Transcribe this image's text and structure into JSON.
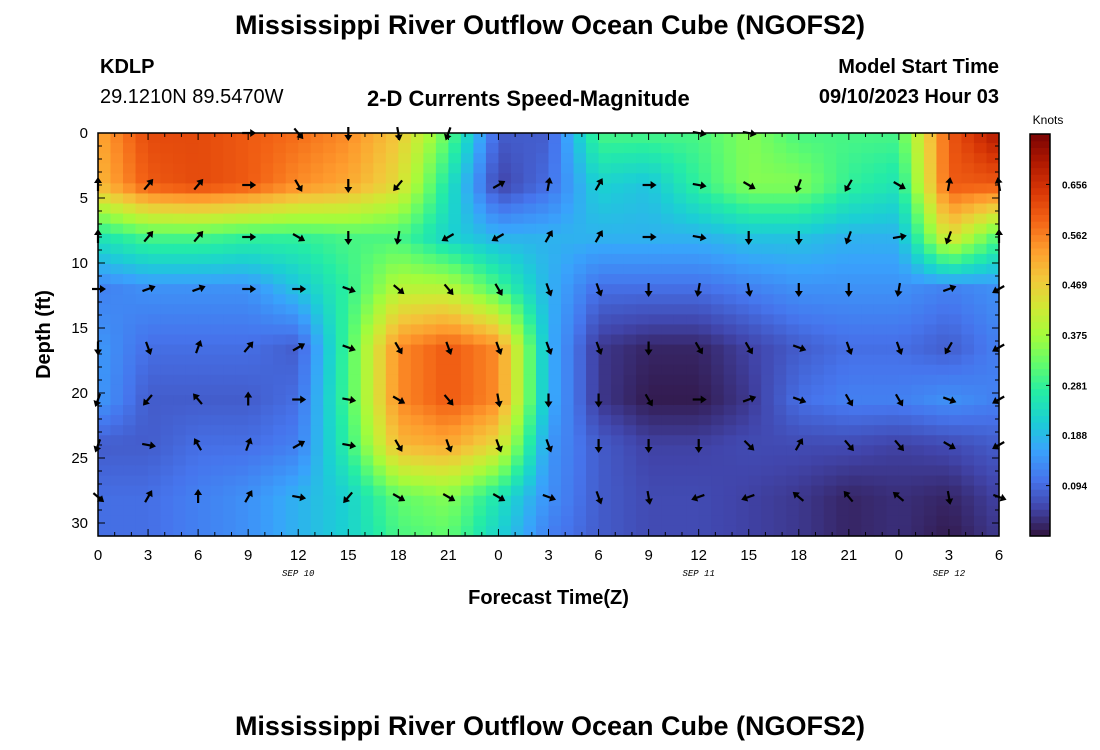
{
  "page": {
    "title": "Mississippi River Outflow Ocean Cube (NGOFS2)",
    "title_repeat": "Mississippi River Outflow Ocean Cube (NGOFS2)",
    "station_id": "KDLP",
    "station_coords": "29.1210N  89.5470W",
    "subtitle": "2-D Currents Speed-Magnitude",
    "model_start_label": "Model Start Time",
    "model_start_value": "09/10/2023 Hour 03"
  },
  "chart_data": {
    "type": "heatmap",
    "xlabel": "Forecast Time(Z)",
    "ylabel": "Depth (ft)",
    "x_tick_labels": [
      "0",
      "3",
      "6",
      "9",
      "12",
      "15",
      "18",
      "21",
      "0",
      "3",
      "6",
      "9",
      "12",
      "15",
      "18",
      "21",
      "0",
      "3",
      "6"
    ],
    "x_range_hours": [
      0,
      54
    ],
    "date_labels": [
      {
        "text": "SEP 10",
        "hour": 12
      },
      {
        "text": "SEP 11",
        "hour": 36
      },
      {
        "text": "SEP 12",
        "hour": 51
      }
    ],
    "y_ticks": [
      0,
      5,
      10,
      15,
      20,
      25,
      30
    ],
    "y_range": [
      0,
      31
    ],
    "y_reversed": true,
    "colorbar": {
      "label": "Knots",
      "ticks": [
        0.094,
        0.188,
        0.281,
        0.375,
        0.469,
        0.562,
        0.656
      ],
      "range": [
        0.0,
        0.75
      ],
      "colors": [
        "#30123b",
        "#4145ab",
        "#4675ed",
        "#39a2fc",
        "#1bcfd4",
        "#24eca6",
        "#61fc6c",
        "#a4fc3b",
        "#d1e834",
        "#f3c63a",
        "#fe9b2d",
        "#f36315",
        "#d93806",
        "#b11901",
        "#7a0403"
      ]
    },
    "depth_levels_ft": [
      0,
      4,
      8,
      12,
      16.5,
      20.5,
      24,
      28
    ],
    "speed_samples": {
      "hours": [
        0,
        3,
        6,
        9,
        12,
        15,
        18,
        21,
        24,
        27,
        30,
        33,
        36,
        39,
        42,
        45,
        48,
        51,
        54
      ],
      "rows": [
        {
          "depth": 0,
          "values": [
            0.52,
            0.62,
            0.62,
            0.6,
            0.58,
            0.55,
            0.48,
            0.32,
            0.08,
            0.08,
            0.3,
            0.3,
            0.3,
            0.35,
            0.3,
            0.3,
            0.3,
            0.6,
            0.7
          ]
        },
        {
          "depth": 4,
          "values": [
            0.5,
            0.6,
            0.62,
            0.6,
            0.55,
            0.52,
            0.45,
            0.25,
            0.05,
            0.1,
            0.22,
            0.2,
            0.28,
            0.35,
            0.35,
            0.28,
            0.25,
            0.6,
            0.6
          ]
        },
        {
          "depth": 8,
          "values": [
            0.25,
            0.3,
            0.3,
            0.28,
            0.28,
            0.3,
            0.3,
            0.22,
            0.18,
            0.18,
            0.18,
            0.18,
            0.18,
            0.2,
            0.2,
            0.18,
            0.18,
            0.45,
            0.3
          ]
        },
        {
          "depth": 12,
          "values": [
            0.12,
            0.14,
            0.14,
            0.14,
            0.2,
            0.28,
            0.4,
            0.4,
            0.3,
            0.18,
            0.1,
            0.1,
            0.1,
            0.12,
            0.14,
            0.14,
            0.14,
            0.12,
            0.14
          ]
        },
        {
          "depth": 16.5,
          "values": [
            0.15,
            0.1,
            0.1,
            0.1,
            0.08,
            0.3,
            0.55,
            0.6,
            0.55,
            0.18,
            0.04,
            0.02,
            0.02,
            0.05,
            0.08,
            0.1,
            0.1,
            0.08,
            0.12
          ]
        },
        {
          "depth": 20.5,
          "values": [
            0.15,
            0.08,
            0.08,
            0.08,
            0.1,
            0.3,
            0.55,
            0.6,
            0.55,
            0.18,
            0.04,
            0.01,
            0.01,
            0.04,
            0.1,
            0.12,
            0.12,
            0.14,
            0.12
          ]
        },
        {
          "depth": 24,
          "values": [
            0.08,
            0.08,
            0.1,
            0.1,
            0.12,
            0.28,
            0.5,
            0.52,
            0.45,
            0.15,
            0.08,
            0.05,
            0.05,
            0.06,
            0.06,
            0.06,
            0.05,
            0.06,
            0.08
          ]
        },
        {
          "depth": 28,
          "values": [
            0.1,
            0.1,
            0.12,
            0.14,
            0.18,
            0.22,
            0.32,
            0.35,
            0.25,
            0.14,
            0.08,
            0.06,
            0.06,
            0.05,
            0.04,
            0.02,
            0.03,
            0.02,
            0.05
          ]
        },
        {
          "depth": 31,
          "values": [
            0.1,
            0.1,
            0.12,
            0.14,
            0.18,
            0.22,
            0.3,
            0.32,
            0.22,
            0.12,
            0.08,
            0.06,
            0.06,
            0.05,
            0.04,
            0.02,
            0.03,
            0.01,
            0.04
          ]
        }
      ]
    },
    "current_direction_rows": [
      {
        "depth": 0,
        "directions_deg": [
          null,
          null,
          null,
          90,
          140,
          180,
          170,
          200,
          null,
          null,
          null,
          null,
          100,
          100,
          null,
          null,
          null,
          null,
          null
        ]
      },
      {
        "depth": 4,
        "directions_deg": [
          0,
          40,
          40,
          90,
          150,
          180,
          220,
          null,
          60,
          10,
          30,
          90,
          100,
          120,
          200,
          210,
          120,
          10,
          350
        ]
      },
      {
        "depth": 8,
        "directions_deg": [
          0,
          40,
          40,
          90,
          120,
          180,
          190,
          240,
          240,
          30,
          30,
          90,
          100,
          180,
          180,
          200,
          80,
          200,
          0
        ]
      },
      {
        "depth": 12,
        "directions_deg": [
          90,
          70,
          70,
          90,
          90,
          110,
          130,
          140,
          150,
          160,
          160,
          180,
          190,
          170,
          180,
          180,
          190,
          70,
          240
        ]
      },
      {
        "depth": 16.5,
        "directions_deg": [
          180,
          160,
          20,
          40,
          60,
          110,
          150,
          160,
          160,
          160,
          160,
          180,
          150,
          150,
          110,
          160,
          160,
          210,
          240
        ]
      },
      {
        "depth": 20.5,
        "directions_deg": [
          200,
          220,
          320,
          0,
          90,
          100,
          120,
          140,
          170,
          180,
          180,
          150,
          90,
          70,
          110,
          150,
          150,
          110,
          240
        ]
      },
      {
        "depth": 24,
        "directions_deg": [
          200,
          100,
          330,
          20,
          60,
          100,
          150,
          160,
          160,
          160,
          180,
          180,
          180,
          135,
          30,
          140,
          140,
          120,
          240
        ]
      },
      {
        "depth": 28,
        "directions_deg": [
          130,
          30,
          0,
          30,
          100,
          220,
          120,
          120,
          120,
          110,
          160,
          170,
          250,
          250,
          310,
          320,
          310,
          170,
          110
        ]
      }
    ]
  }
}
